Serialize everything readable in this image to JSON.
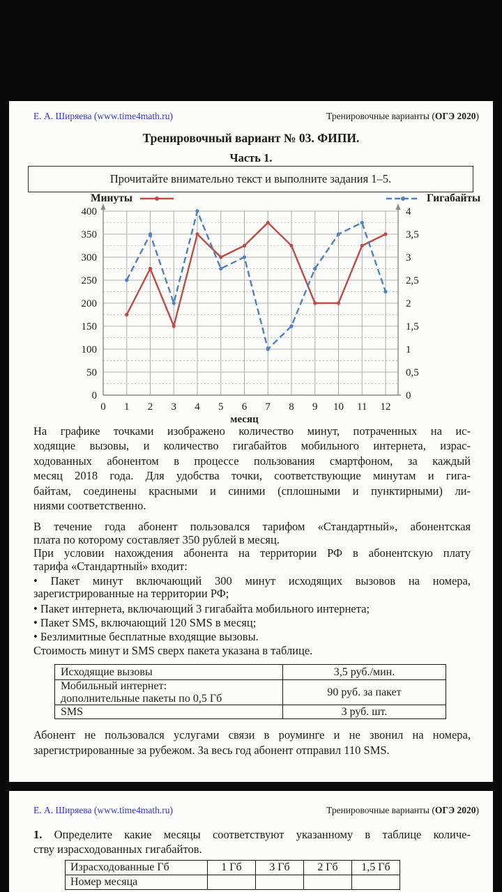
{
  "header": {
    "left": "Е. А. Ширяева (www.time4math.ru)",
    "right_plain": "Тренировочные варианты (",
    "right_bold": "ОГЭ 2020",
    "right_close": ")"
  },
  "page1": {
    "title": "Тренировочный вариант № 03. ФИПИ.",
    "part": "Часть 1.",
    "instruction": "Прочитайте внимательно текст и выполните задания 1–5.",
    "paragraphs": {
      "p1": [
        "На графике точками изображено количество минут, потраченных на ис-",
        "ходящие вызовы, и количество гигабайтов мобильного интернета, израс-",
        "ходованных абонентом в процессе пользования смартфоном, за каждый",
        "месяц 2018 года. Для удобства точки, соответствующие минутам и гига-",
        "байтам, соединены красными и синими (сплошными и пунктирными) ли-",
        "ниями соответственно."
      ],
      "p2": [
        "В течение года абонент пользовался тарифом «Стандартный», абонентская",
        "плата по которому составляет 350 рублей в месяц."
      ],
      "p3": [
        "При условии нахождения абонента на территории РФ в абонентскую плату",
        "тарифа «Стандартный» входит:"
      ],
      "b1": [
        "• Пакет минут включающий 300 минут исходящих вызовов на номера,",
        "зарегистрированные на территории РФ;"
      ],
      "b2": [
        "• Пакет интернета, включающий 3 гигабайта мобильного интернета;"
      ],
      "b3": [
        "• Пакет SMS, включающий 120 SMS в месяц;"
      ],
      "b4": [
        "• Безлимитные бесплатные входящие вызовы."
      ],
      "cost": [
        "Стоимость минут и SMS сверх пакета указана в таблице."
      ],
      "final": [
        "Абонент не пользовался услугами связи в роуминге и не звонил на номера,",
        "зарегистрированные за рубежом. За весь год абонент отправил 110 SMS."
      ]
    },
    "tariff_table": {
      "rows": [
        {
          "c1": [
            "Исходящие вызовы"
          ],
          "c2": "3,5 руб./мин."
        },
        {
          "c1": [
            "Мобильный интернет:",
            "дополнительные пакеты по 0,5 Гб"
          ],
          "c2": "90 руб. за пакет"
        },
        {
          "c1": [
            "SMS"
          ],
          "c2": "3 руб. шт."
        }
      ]
    }
  },
  "chart_data": {
    "type": "line",
    "x_label": "месяц",
    "x_ticks": [
      0,
      1,
      2,
      3,
      4,
      5,
      6,
      7,
      8,
      9,
      10,
      11,
      12
    ],
    "left_axis": {
      "ticks_desc": [
        "400",
        "350",
        "300",
        "250",
        "200",
        "150",
        "100",
        "50",
        "0"
      ],
      "min": 0,
      "max": 400
    },
    "right_axis": {
      "ticks_desc": [
        "4",
        "3,5",
        "3",
        "2,5",
        "2",
        "1,5",
        "1",
        "0,5",
        "0"
      ],
      "min": 0,
      "max": 4
    },
    "grid": true,
    "legend_position": "top",
    "months": [
      1,
      2,
      3,
      4,
      5,
      6,
      7,
      8,
      9,
      10,
      11,
      12
    ],
    "series": [
      {
        "name": "Минуты",
        "axis": "left",
        "color": "#bf4b47",
        "style": "solid",
        "values": [
          175,
          275,
          150,
          350,
          300,
          325,
          375,
          325,
          200,
          200,
          325,
          350
        ]
      },
      {
        "name": "Гигабайты",
        "axis": "right",
        "color": "#4f81bd",
        "style": "dashed",
        "values": [
          2.5,
          3.5,
          2,
          4,
          2.75,
          3,
          1,
          1.5,
          2.75,
          3.5,
          3.75,
          2.25
        ]
      }
    ]
  },
  "page2": {
    "question": {
      "lines": [
        {
          "b": "1.",
          "t": "Определите какие месяцы соответствуют указанному в таблице количе-"
        },
        "ству израсходованных гигабайтов."
      ]
    },
    "answer_table": {
      "headers": [
        "Израсходованные Гб",
        "1 Гб",
        "3 Гб",
        "2 Гб",
        "1,5 Гб"
      ],
      "row_label": "Номер месяца",
      "cells": [
        "",
        "",
        "",
        ""
      ]
    }
  }
}
